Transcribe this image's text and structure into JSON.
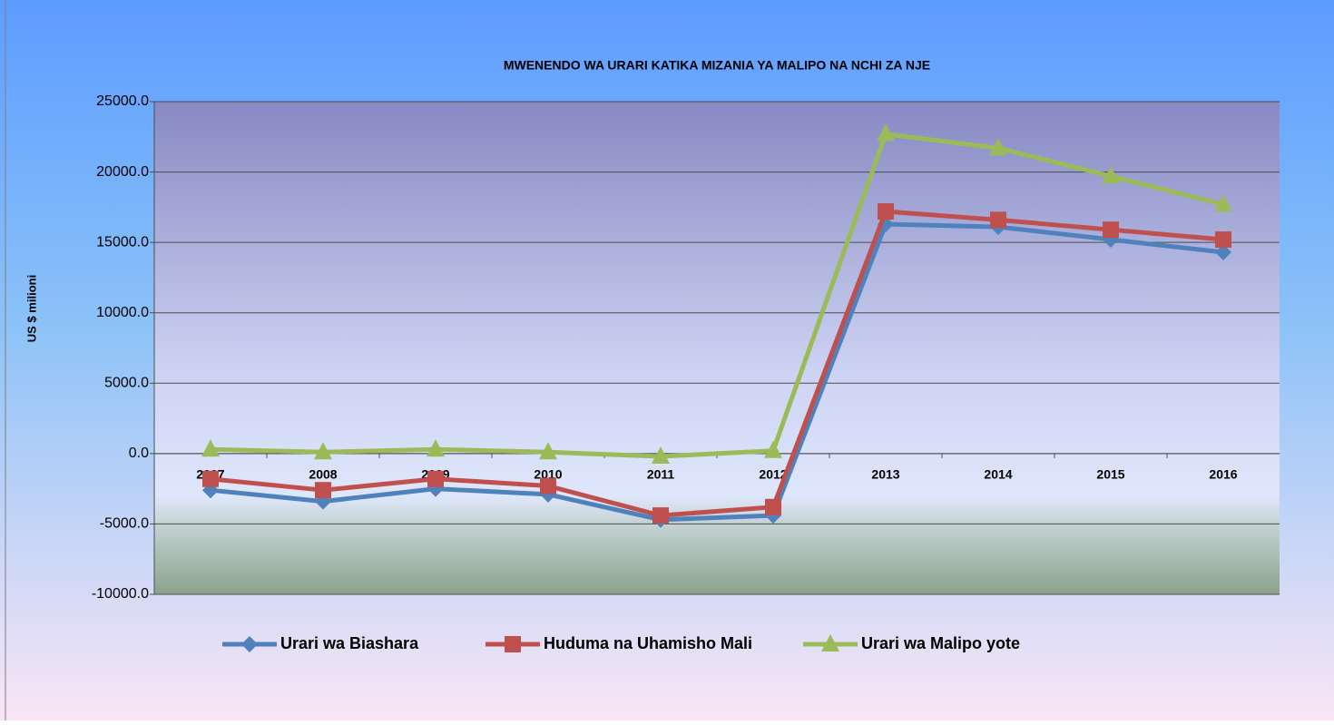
{
  "chart_data": {
    "type": "line",
    "title": "MWENENDO WA URARI KATIKA MIZANIA YA MALIPO NA NCHI ZA NJE",
    "y_label": "US $ milioni",
    "categories": [
      "2007",
      "2008",
      "2009",
      "2010",
      "2011",
      "2012",
      "2013",
      "2014",
      "2015",
      "2016"
    ],
    "series": [
      {
        "name": "Urari wa Biashara",
        "color": "#4f81bd",
        "marker": "diamond",
        "values": [
          -2600,
          -3400,
          -2500,
          -2900,
          -4700,
          -4400,
          16300,
          16100,
          15200,
          14300
        ]
      },
      {
        "name": "Huduma na Uhamisho Mali",
        "color": "#c0504d",
        "marker": "square",
        "values": [
          -1800,
          -2600,
          -1800,
          -2300,
          -4400,
          -3800,
          17200,
          16600,
          15900,
          15200
        ]
      },
      {
        "name": "Urari wa Malipo yote",
        "color": "#9bbb59",
        "marker": "triangle",
        "values": [
          300,
          100,
          300,
          100,
          -200,
          200,
          22700,
          21700,
          19700,
          17700
        ]
      }
    ],
    "ylim": [
      -10000,
      25000
    ],
    "yticks": [
      {
        "value": -10000,
        "label": "-10000.0"
      },
      {
        "value": -5000,
        "label": "-5000.0"
      },
      {
        "value": 0,
        "label": "0.0"
      },
      {
        "value": 5000,
        "label": "5000.0"
      },
      {
        "value": 10000,
        "label": "10000.0"
      },
      {
        "value": 15000,
        "label": "15000.0"
      },
      {
        "value": 20000,
        "label": "20000.0"
      },
      {
        "value": 25000,
        "label": "25000.0"
      }
    ],
    "grid": true,
    "legend": "bottom"
  }
}
